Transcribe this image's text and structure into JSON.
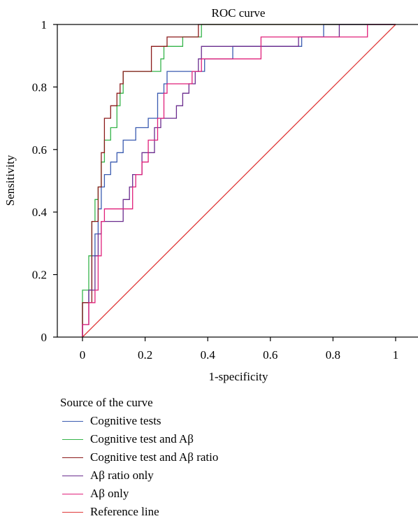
{
  "chart_data": {
    "type": "line",
    "title": "ROC curve",
    "xlabel": "1-specificity",
    "ylabel": "Sensitivity",
    "xlim": [
      0,
      1
    ],
    "ylim": [
      0,
      1
    ],
    "xticks": [
      0,
      0.2,
      0.4,
      0.6,
      0.8,
      1
    ],
    "yticks": [
      0,
      0.2,
      0.4,
      0.6,
      0.8,
      1
    ],
    "xtick_labels": [
      "0",
      "0.2",
      "0.4",
      "0.6",
      "0.8",
      "1"
    ],
    "ytick_labels": [
      "0",
      "0.2",
      "0.4",
      "0.6",
      "0.8",
      "1"
    ],
    "grid": false,
    "legend": {
      "title": "Source of the curve",
      "placement": "bottom-left"
    },
    "series": [
      {
        "name": "Cognitive tests",
        "color": "#3a5bb0",
        "points": [
          [
            0,
            0
          ],
          [
            0,
            0.11
          ],
          [
            0.02,
            0.11
          ],
          [
            0.02,
            0.15
          ],
          [
            0.03,
            0.15
          ],
          [
            0.03,
            0.26
          ],
          [
            0.04,
            0.26
          ],
          [
            0.04,
            0.33
          ],
          [
            0.05,
            0.33
          ],
          [
            0.05,
            0.41
          ],
          [
            0.06,
            0.41
          ],
          [
            0.06,
            0.48
          ],
          [
            0.07,
            0.48
          ],
          [
            0.07,
            0.52
          ],
          [
            0.09,
            0.52
          ],
          [
            0.09,
            0.56
          ],
          [
            0.11,
            0.56
          ],
          [
            0.11,
            0.59
          ],
          [
            0.13,
            0.59
          ],
          [
            0.13,
            0.63
          ],
          [
            0.17,
            0.63
          ],
          [
            0.17,
            0.67
          ],
          [
            0.21,
            0.67
          ],
          [
            0.21,
            0.7
          ],
          [
            0.24,
            0.7
          ],
          [
            0.24,
            0.78
          ],
          [
            0.26,
            0.78
          ],
          [
            0.26,
            0.81
          ],
          [
            0.27,
            0.81
          ],
          [
            0.27,
            0.85
          ],
          [
            0.39,
            0.85
          ],
          [
            0.39,
            0.89
          ],
          [
            0.48,
            0.89
          ],
          [
            0.48,
            0.93
          ],
          [
            0.7,
            0.93
          ],
          [
            0.7,
            0.96
          ],
          [
            0.77,
            0.96
          ],
          [
            0.77,
            1
          ],
          [
            1,
            1
          ]
        ]
      },
      {
        "name": "Cognitive test and Aβ",
        "color": "#35b44a",
        "points": [
          [
            0,
            0
          ],
          [
            0,
            0.15
          ],
          [
            0.02,
            0.15
          ],
          [
            0.02,
            0.26
          ],
          [
            0.03,
            0.26
          ],
          [
            0.03,
            0.37
          ],
          [
            0.04,
            0.37
          ],
          [
            0.04,
            0.44
          ],
          [
            0.05,
            0.44
          ],
          [
            0.05,
            0.48
          ],
          [
            0.06,
            0.48
          ],
          [
            0.06,
            0.56
          ],
          [
            0.07,
            0.56
          ],
          [
            0.07,
            0.63
          ],
          [
            0.09,
            0.63
          ],
          [
            0.09,
            0.67
          ],
          [
            0.11,
            0.67
          ],
          [
            0.11,
            0.74
          ],
          [
            0.12,
            0.74
          ],
          [
            0.12,
            0.78
          ],
          [
            0.13,
            0.78
          ],
          [
            0.13,
            0.85
          ],
          [
            0.25,
            0.85
          ],
          [
            0.25,
            0.89
          ],
          [
            0.26,
            0.89
          ],
          [
            0.26,
            0.93
          ],
          [
            0.32,
            0.93
          ],
          [
            0.32,
            0.96
          ],
          [
            0.38,
            0.96
          ],
          [
            0.38,
            1
          ],
          [
            1,
            1
          ]
        ]
      },
      {
        "name": "Cognitive test and Aβ ratio",
        "color": "#8b1a1a",
        "points": [
          [
            0,
            0
          ],
          [
            0,
            0.11
          ],
          [
            0.03,
            0.11
          ],
          [
            0.03,
            0.37
          ],
          [
            0.05,
            0.37
          ],
          [
            0.05,
            0.48
          ],
          [
            0.06,
            0.48
          ],
          [
            0.06,
            0.59
          ],
          [
            0.07,
            0.59
          ],
          [
            0.07,
            0.7
          ],
          [
            0.09,
            0.7
          ],
          [
            0.09,
            0.74
          ],
          [
            0.11,
            0.74
          ],
          [
            0.11,
            0.78
          ],
          [
            0.12,
            0.78
          ],
          [
            0.12,
            0.81
          ],
          [
            0.13,
            0.81
          ],
          [
            0.13,
            0.85
          ],
          [
            0.22,
            0.85
          ],
          [
            0.22,
            0.93
          ],
          [
            0.27,
            0.93
          ],
          [
            0.27,
            0.96
          ],
          [
            0.37,
            0.96
          ],
          [
            0.37,
            1
          ],
          [
            1,
            1
          ]
        ]
      },
      {
        "name": "Aβ ratio only",
        "color": "#6a2c8e",
        "points": [
          [
            0,
            0
          ],
          [
            0,
            0.04
          ],
          [
            0.02,
            0.04
          ],
          [
            0.02,
            0.15
          ],
          [
            0.04,
            0.15
          ],
          [
            0.04,
            0.26
          ],
          [
            0.05,
            0.26
          ],
          [
            0.05,
            0.33
          ],
          [
            0.06,
            0.33
          ],
          [
            0.06,
            0.37
          ],
          [
            0.13,
            0.37
          ],
          [
            0.13,
            0.44
          ],
          [
            0.15,
            0.44
          ],
          [
            0.15,
            0.48
          ],
          [
            0.16,
            0.48
          ],
          [
            0.16,
            0.52
          ],
          [
            0.19,
            0.52
          ],
          [
            0.19,
            0.59
          ],
          [
            0.23,
            0.59
          ],
          [
            0.23,
            0.67
          ],
          [
            0.25,
            0.67
          ],
          [
            0.25,
            0.7
          ],
          [
            0.3,
            0.7
          ],
          [
            0.3,
            0.74
          ],
          [
            0.32,
            0.74
          ],
          [
            0.32,
            0.78
          ],
          [
            0.34,
            0.78
          ],
          [
            0.34,
            0.81
          ],
          [
            0.36,
            0.81
          ],
          [
            0.36,
            0.85
          ],
          [
            0.37,
            0.85
          ],
          [
            0.37,
            0.89
          ],
          [
            0.38,
            0.89
          ],
          [
            0.38,
            0.93
          ],
          [
            0.69,
            0.93
          ],
          [
            0.69,
            0.96
          ],
          [
            0.82,
            0.96
          ],
          [
            0.82,
            1
          ],
          [
            1,
            1
          ]
        ]
      },
      {
        "name": "Aβ only",
        "color": "#e0207a",
        "points": [
          [
            0,
            0
          ],
          [
            0,
            0.04
          ],
          [
            0.02,
            0.04
          ],
          [
            0.02,
            0.11
          ],
          [
            0.04,
            0.11
          ],
          [
            0.04,
            0.15
          ],
          [
            0.05,
            0.15
          ],
          [
            0.05,
            0.26
          ],
          [
            0.06,
            0.26
          ],
          [
            0.06,
            0.37
          ],
          [
            0.07,
            0.37
          ],
          [
            0.07,
            0.41
          ],
          [
            0.16,
            0.41
          ],
          [
            0.16,
            0.48
          ],
          [
            0.17,
            0.48
          ],
          [
            0.17,
            0.52
          ],
          [
            0.19,
            0.52
          ],
          [
            0.19,
            0.56
          ],
          [
            0.21,
            0.56
          ],
          [
            0.21,
            0.63
          ],
          [
            0.24,
            0.63
          ],
          [
            0.24,
            0.7
          ],
          [
            0.26,
            0.7
          ],
          [
            0.26,
            0.78
          ],
          [
            0.27,
            0.78
          ],
          [
            0.27,
            0.81
          ],
          [
            0.35,
            0.81
          ],
          [
            0.35,
            0.85
          ],
          [
            0.38,
            0.85
          ],
          [
            0.38,
            0.89
          ],
          [
            0.57,
            0.89
          ],
          [
            0.57,
            0.96
          ],
          [
            0.91,
            0.96
          ],
          [
            0.91,
            1
          ],
          [
            1,
            1
          ]
        ]
      },
      {
        "name": "Reference line",
        "color": "#e03a3a",
        "points": [
          [
            0,
            0
          ],
          [
            1,
            1
          ]
        ]
      }
    ],
    "legend_entries": [
      {
        "label": "Cognitive tests",
        "color": "#3a5bb0"
      },
      {
        "label": "Cognitive test and Aβ",
        "color": "#35b44a"
      },
      {
        "label": "Cognitive test and Aβ ratio",
        "color": "#8b1a1a"
      },
      {
        "label": "Aβ ratio only",
        "color": "#6a2c8e"
      },
      {
        "label": "Aβ only",
        "color": "#e0207a"
      },
      {
        "label": "Reference line",
        "color": "#e03a3a"
      }
    ]
  }
}
